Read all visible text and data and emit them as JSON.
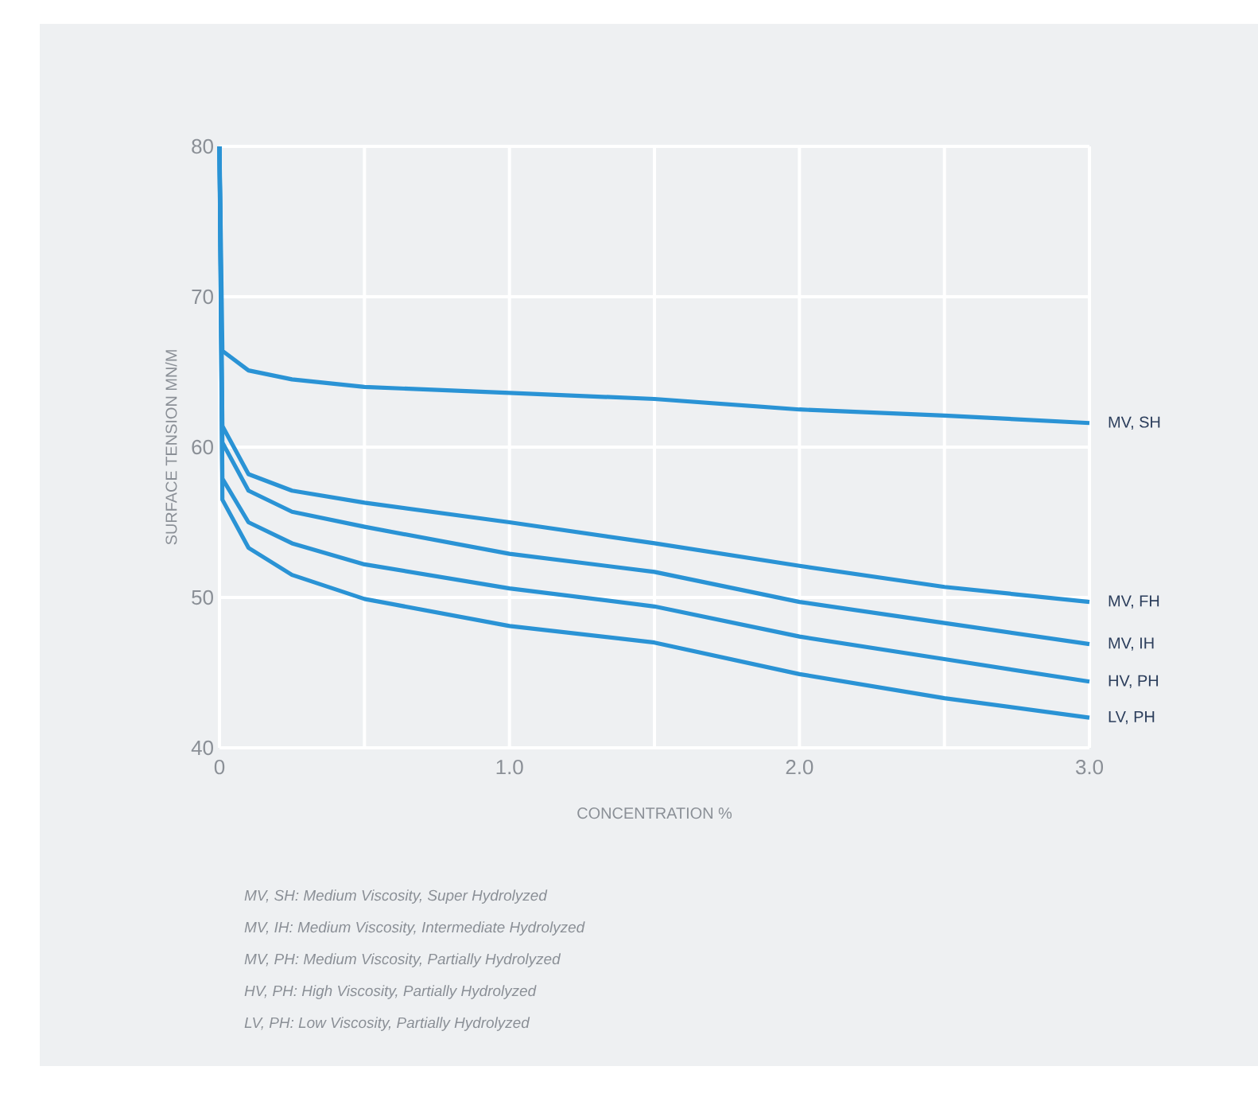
{
  "chart_data": {
    "type": "line",
    "xlabel": "CONCENTRATION %",
    "ylabel": "SURFACE TENSION MN/M",
    "x": [
      0,
      0.01,
      0.1,
      0.25,
      0.5,
      1,
      1.5,
      2,
      2.5,
      3
    ],
    "series": [
      {
        "name": "MV, SH",
        "color": "#2a93d5",
        "values": [
          80,
          66.4,
          65.1,
          64.5,
          64.0,
          63.6,
          63.2,
          62.5,
          62.1,
          61.6
        ]
      },
      {
        "name": "MV, FH",
        "color": "#2a93d5",
        "values": [
          80,
          61.4,
          58.2,
          57.1,
          56.3,
          55.0,
          53.6,
          52.1,
          50.7,
          49.7
        ]
      },
      {
        "name": "MV, IH",
        "color": "#2a93d5",
        "values": [
          80,
          60.3,
          57.1,
          55.7,
          54.7,
          52.9,
          51.7,
          49.7,
          48.3,
          46.9
        ]
      },
      {
        "name": "HV, PH",
        "color": "#2a93d5",
        "values": [
          80,
          57.9,
          55.0,
          53.6,
          52.2,
          50.6,
          49.4,
          47.4,
          45.9,
          44.4
        ]
      },
      {
        "name": "LV, PH",
        "color": "#2a93d5",
        "values": [
          80,
          56.5,
          53.3,
          51.5,
          49.9,
          48.1,
          47.0,
          44.9,
          43.3,
          42.0
        ]
      }
    ],
    "xlim": [
      0,
      3
    ],
    "ylim": [
      40,
      80
    ],
    "xticks": [
      0,
      {
        "value": 0.5,
        "label": null
      },
      {
        "value": 1,
        "label": "1.0"
      },
      {
        "value": 1.5,
        "label": null
      },
      {
        "value": 2,
        "label": "2.0"
      },
      {
        "value": 2.5,
        "label": null
      },
      {
        "value": 3,
        "label": "3.0"
      }
    ],
    "yticks": [
      40,
      50,
      60,
      70,
      80
    ],
    "grid": true,
    "marker": "none",
    "line_style": "solid",
    "annotations": [
      "MV, SH:  Medium Viscosity, Super Hydrolyzed",
      "MV, IH:  Medium Viscosity, Intermediate Hydrolyzed",
      "MV, PH:  Medium Viscosity, Partially Hydrolyzed",
      "HV, PH:  High Viscosity, Partially Hydrolyzed",
      "LV, PH:  Low Viscosity, Partially Hydrolyzed"
    ]
  }
}
